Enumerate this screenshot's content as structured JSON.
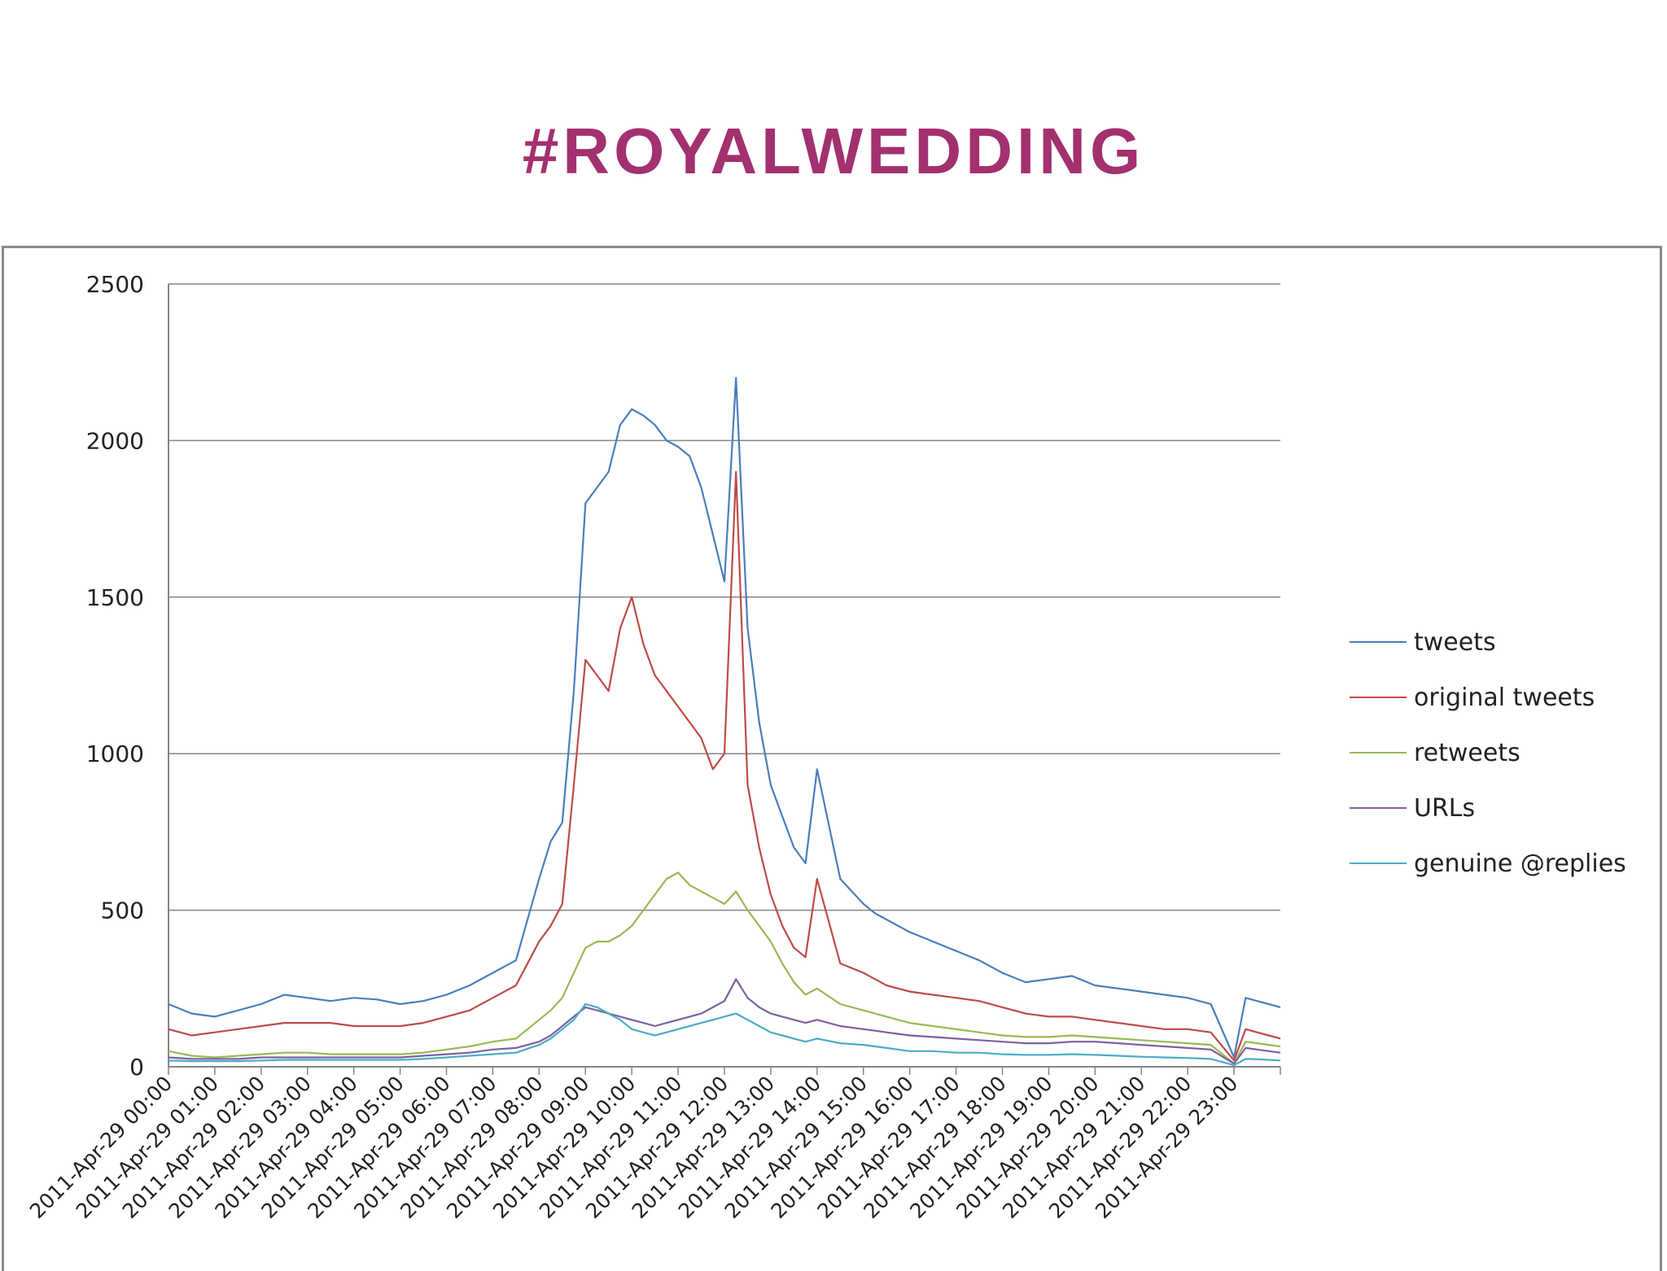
{
  "slide": {
    "title": "#ROYALWEDDING"
  },
  "chart_data": {
    "type": "line",
    "title": "#ROYALWEDDING",
    "xlabel": "",
    "ylabel": "",
    "ylim": [
      0,
      2500
    ],
    "yticks": [
      0,
      500,
      1000,
      1500,
      2000,
      2500
    ],
    "xticks": [
      "2011-Apr-29 00:00",
      "2011-Apr-29 01:00",
      "2011-Apr-29 02:00",
      "2011-Apr-29 03:00",
      "2011-Apr-29 04:00",
      "2011-Apr-29 05:00",
      "2011-Apr-29 06:00",
      "2011-Apr-29 07:00",
      "2011-Apr-29 08:00",
      "2011-Apr-29 09:00",
      "2011-Apr-29 10:00",
      "2011-Apr-29 11:00",
      "2011-Apr-29 12:00",
      "2011-Apr-29 13:00",
      "2011-Apr-29 14:00",
      "2011-Apr-29 15:00",
      "2011-Apr-29 16:00",
      "2011-Apr-29 17:00",
      "2011-Apr-29 18:00",
      "2011-Apr-29 19:00",
      "2011-Apr-29 20:00",
      "2011-Apr-29 21:00",
      "2011-Apr-29 22:00",
      "2011-Apr-29 23:00"
    ],
    "x_hours": [
      0,
      0.5,
      1,
      1.5,
      2,
      2.5,
      3,
      3.5,
      4,
      4.5,
      5,
      5.5,
      6,
      6.5,
      7,
      7.5,
      8,
      8.25,
      8.5,
      8.75,
      9,
      9.25,
      9.5,
      9.75,
      10,
      10.25,
      10.5,
      10.75,
      11,
      11.25,
      11.5,
      11.75,
      12,
      12.25,
      12.5,
      12.75,
      13,
      13.25,
      13.5,
      13.75,
      14,
      14.5,
      15,
      15.25,
      15.5,
      15.75,
      16,
      16.5,
      17,
      17.5,
      18,
      18.5,
      19,
      19.5,
      20,
      20.5,
      21,
      21.5,
      22,
      22.5,
      23,
      23.25,
      23.5,
      23.75,
      24
    ],
    "grid": true,
    "legend_position": "right",
    "series": [
      {
        "name": "tweets",
        "color": "#4a7ebb",
        "values": [
          200,
          170,
          160,
          180,
          200,
          230,
          220,
          210,
          220,
          215,
          200,
          210,
          230,
          260,
          300,
          340,
          600,
          720,
          780,
          1200,
          1800,
          1850,
          1900,
          2050,
          2100,
          2080,
          2050,
          2000,
          1980,
          1950,
          1850,
          1700,
          1550,
          2200,
          1400,
          1100,
          900,
          800,
          700,
          650,
          950,
          600,
          520,
          490,
          470,
          450,
          430,
          400,
          370,
          340,
          300,
          270,
          280,
          290,
          260,
          250,
          240,
          230,
          220,
          200,
          30,
          220,
          210,
          200,
          190
        ]
      },
      {
        "name": "original tweets",
        "color": "#be4b48",
        "values": [
          120,
          100,
          110,
          120,
          130,
          140,
          140,
          140,
          130,
          130,
          130,
          140,
          160,
          180,
          220,
          260,
          400,
          450,
          520,
          900,
          1300,
          1250,
          1200,
          1400,
          1500,
          1350,
          1250,
          1200,
          1150,
          1100,
          1050,
          950,
          1000,
          1900,
          900,
          700,
          550,
          450,
          380,
          350,
          600,
          330,
          300,
          280,
          260,
          250,
          240,
          230,
          220,
          210,
          190,
          170,
          160,
          160,
          150,
          140,
          130,
          120,
          120,
          110,
          20,
          120,
          110,
          100,
          90
        ]
      },
      {
        "name": "retweets",
        "color": "#98b954",
        "values": [
          50,
          35,
          30,
          35,
          40,
          45,
          45,
          40,
          40,
          40,
          40,
          45,
          55,
          65,
          80,
          90,
          150,
          180,
          220,
          300,
          380,
          400,
          400,
          420,
          450,
          500,
          550,
          600,
          620,
          580,
          560,
          540,
          520,
          560,
          500,
          450,
          400,
          330,
          270,
          230,
          250,
          200,
          180,
          170,
          160,
          150,
          140,
          130,
          120,
          110,
          100,
          95,
          95,
          100,
          95,
          90,
          85,
          80,
          75,
          70,
          10,
          80,
          75,
          70,
          65
        ]
      },
      {
        "name": "URLs",
        "color": "#7d60a0",
        "values": [
          30,
          25,
          25,
          25,
          30,
          30,
          30,
          30,
          30,
          30,
          30,
          35,
          40,
          45,
          55,
          60,
          80,
          100,
          130,
          160,
          190,
          180,
          170,
          160,
          150,
          140,
          130,
          140,
          150,
          160,
          170,
          190,
          210,
          280,
          220,
          190,
          170,
          160,
          150,
          140,
          150,
          130,
          120,
          115,
          110,
          105,
          100,
          95,
          90,
          85,
          80,
          75,
          75,
          80,
          80,
          75,
          70,
          65,
          60,
          55,
          10,
          60,
          55,
          50,
          45
        ]
      },
      {
        "name": "genuine @replies",
        "color": "#4bacc6",
        "values": [
          20,
          18,
          18,
          18,
          20,
          22,
          22,
          22,
          22,
          22,
          22,
          25,
          30,
          35,
          40,
          45,
          70,
          90,
          120,
          150,
          200,
          190,
          170,
          150,
          120,
          110,
          100,
          110,
          120,
          130,
          140,
          150,
          160,
          170,
          150,
          130,
          110,
          100,
          90,
          80,
          90,
          75,
          70,
          65,
          60,
          55,
          50,
          50,
          45,
          45,
          40,
          38,
          38,
          40,
          38,
          35,
          32,
          30,
          28,
          25,
          5,
          25,
          24,
          22,
          20
        ]
      }
    ]
  }
}
